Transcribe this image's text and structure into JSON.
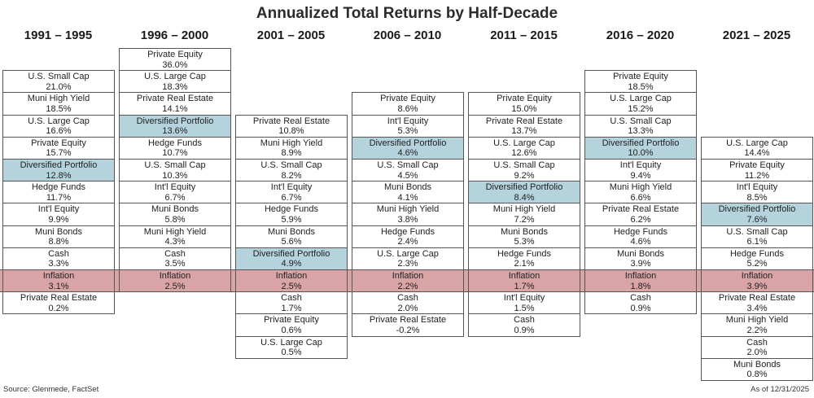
{
  "chart_data": {
    "type": "table",
    "title": "Annualized Total Returns by Half-Decade",
    "source": "Source: Glenmede, FactSet",
    "as_of": "As of 12/31/2025",
    "inflation_rank": 10,
    "colors": {
      "portfolio": "#b5d3dc",
      "inflation": "#d9a4a6",
      "border": "#555555"
    },
    "columns": [
      {
        "period": "1991 – 1995",
        "top_rank": 1,
        "items": [
          {
            "name": "U.S. Small Cap",
            "value": "21.0%"
          },
          {
            "name": "Muni High Yield",
            "value": "18.5%"
          },
          {
            "name": "U.S. Large Cap",
            "value": "16.6%"
          },
          {
            "name": "Private Equity",
            "value": "15.7%"
          },
          {
            "name": "Diversified Portfolio",
            "value": "12.8%"
          },
          {
            "name": "Hedge Funds",
            "value": "11.7%"
          },
          {
            "name": "Int'l Equity",
            "value": "9.9%"
          },
          {
            "name": "Muni Bonds",
            "value": "8.8%"
          },
          {
            "name": "Cash",
            "value": "3.3%"
          },
          {
            "name": "Inflation",
            "value": "3.1%"
          },
          {
            "name": "Private Real Estate",
            "value": "0.2%"
          }
        ]
      },
      {
        "period": "1996 – 2000",
        "top_rank": 0,
        "items": [
          {
            "name": "Private Equity",
            "value": "36.0%"
          },
          {
            "name": "U.S. Large Cap",
            "value": "18.3%"
          },
          {
            "name": "Private Real Estate",
            "value": "14.1%"
          },
          {
            "name": "Diversified Portfolio",
            "value": "13.6%"
          },
          {
            "name": "Hedge Funds",
            "value": "10.7%"
          },
          {
            "name": "U.S. Small Cap",
            "value": "10.3%"
          },
          {
            "name": "Int'l Equity",
            "value": "6.7%"
          },
          {
            "name": "Muni Bonds",
            "value": "5.8%"
          },
          {
            "name": "Muni High Yield",
            "value": "4.3%"
          },
          {
            "name": "Cash",
            "value": "3.5%"
          },
          {
            "name": "Inflation",
            "value": "2.5%"
          }
        ]
      },
      {
        "period": "2001 – 2005",
        "top_rank": 3,
        "items": [
          {
            "name": "Private Real Estate",
            "value": "10.8%"
          },
          {
            "name": "Muni High Yield",
            "value": "8.9%"
          },
          {
            "name": "U.S. Small Cap",
            "value": "8.2%"
          },
          {
            "name": "Int'l Equity",
            "value": "6.7%"
          },
          {
            "name": "Hedge Funds",
            "value": "5.9%"
          },
          {
            "name": "Muni Bonds",
            "value": "5.6%"
          },
          {
            "name": "Diversified Portfolio",
            "value": "4.9%"
          },
          {
            "name": "Inflation",
            "value": "2.5%"
          },
          {
            "name": "Cash",
            "value": "1.7%"
          },
          {
            "name": "Private Equity",
            "value": "0.6%"
          },
          {
            "name": "U.S. Large Cap",
            "value": "0.5%"
          }
        ]
      },
      {
        "period": "2006 – 2010",
        "top_rank": 2,
        "items": [
          {
            "name": "Private Equity",
            "value": "8.6%"
          },
          {
            "name": "Int'l Equity",
            "value": "5.3%"
          },
          {
            "name": "Diversified Portfolio",
            "value": "4.6%"
          },
          {
            "name": "U.S. Small Cap",
            "value": "4.5%"
          },
          {
            "name": "Muni Bonds",
            "value": "4.1%"
          },
          {
            "name": "Muni High Yield",
            "value": "3.8%"
          },
          {
            "name": "Hedge Funds",
            "value": "2.4%"
          },
          {
            "name": "U.S. Large Cap",
            "value": "2.3%"
          },
          {
            "name": "Inflation",
            "value": "2.2%"
          },
          {
            "name": "Cash",
            "value": "2.0%"
          },
          {
            "name": "Private Real Estate",
            "value": "-0.2%"
          }
        ]
      },
      {
        "period": "2011 – 2015",
        "top_rank": 2,
        "items": [
          {
            "name": "Private Equity",
            "value": "15.0%"
          },
          {
            "name": "Private Real Estate",
            "value": "13.7%"
          },
          {
            "name": "U.S. Large Cap",
            "value": "12.6%"
          },
          {
            "name": "U.S. Small Cap",
            "value": "9.2%"
          },
          {
            "name": "Diversified Portfolio",
            "value": "8.4%"
          },
          {
            "name": "Muni High Yield",
            "value": "7.2%"
          },
          {
            "name": "Muni Bonds",
            "value": "5.3%"
          },
          {
            "name": "Hedge Funds",
            "value": "2.1%"
          },
          {
            "name": "Inflation",
            "value": "1.7%"
          },
          {
            "name": "Int'l Equity",
            "value": "1.5%"
          },
          {
            "name": "Cash",
            "value": "0.9%"
          }
        ]
      },
      {
        "period": "2016 – 2020",
        "top_rank": 1,
        "items": [
          {
            "name": "Private Equity",
            "value": "18.5%"
          },
          {
            "name": "U.S. Large Cap",
            "value": "15.2%"
          },
          {
            "name": "U.S. Small Cap",
            "value": "13.3%"
          },
          {
            "name": "Diversified Portfolio",
            "value": "10.0%"
          },
          {
            "name": "Int'l Equity",
            "value": "9.4%"
          },
          {
            "name": "Muni High Yield",
            "value": "6.6%"
          },
          {
            "name": "Private Real Estate",
            "value": "6.2%"
          },
          {
            "name": "Hedge Funds",
            "value": "4.6%"
          },
          {
            "name": "Muni Bonds",
            "value": "3.9%"
          },
          {
            "name": "Inflation",
            "value": "1.8%"
          },
          {
            "name": "Cash",
            "value": "0.9%"
          }
        ]
      },
      {
        "period": "2021 – 2025",
        "top_rank": 4,
        "items": [
          {
            "name": "U.S. Large Cap",
            "value": "14.4%"
          },
          {
            "name": "Private Equity",
            "value": "11.2%"
          },
          {
            "name": "Int'l Equity",
            "value": "8.5%"
          },
          {
            "name": "Diversified Portfolio",
            "value": "7.6%"
          },
          {
            "name": "U.S. Small Cap",
            "value": "6.1%"
          },
          {
            "name": "Hedge Funds",
            "value": "5.2%"
          },
          {
            "name": "Inflation",
            "value": "3.9%"
          },
          {
            "name": "Private Real Estate",
            "value": "3.4%"
          },
          {
            "name": "Muni High Yield",
            "value": "2.2%"
          },
          {
            "name": "Cash",
            "value": "2.0%"
          },
          {
            "name": "Muni Bonds",
            "value": "0.8%"
          }
        ]
      }
    ]
  }
}
